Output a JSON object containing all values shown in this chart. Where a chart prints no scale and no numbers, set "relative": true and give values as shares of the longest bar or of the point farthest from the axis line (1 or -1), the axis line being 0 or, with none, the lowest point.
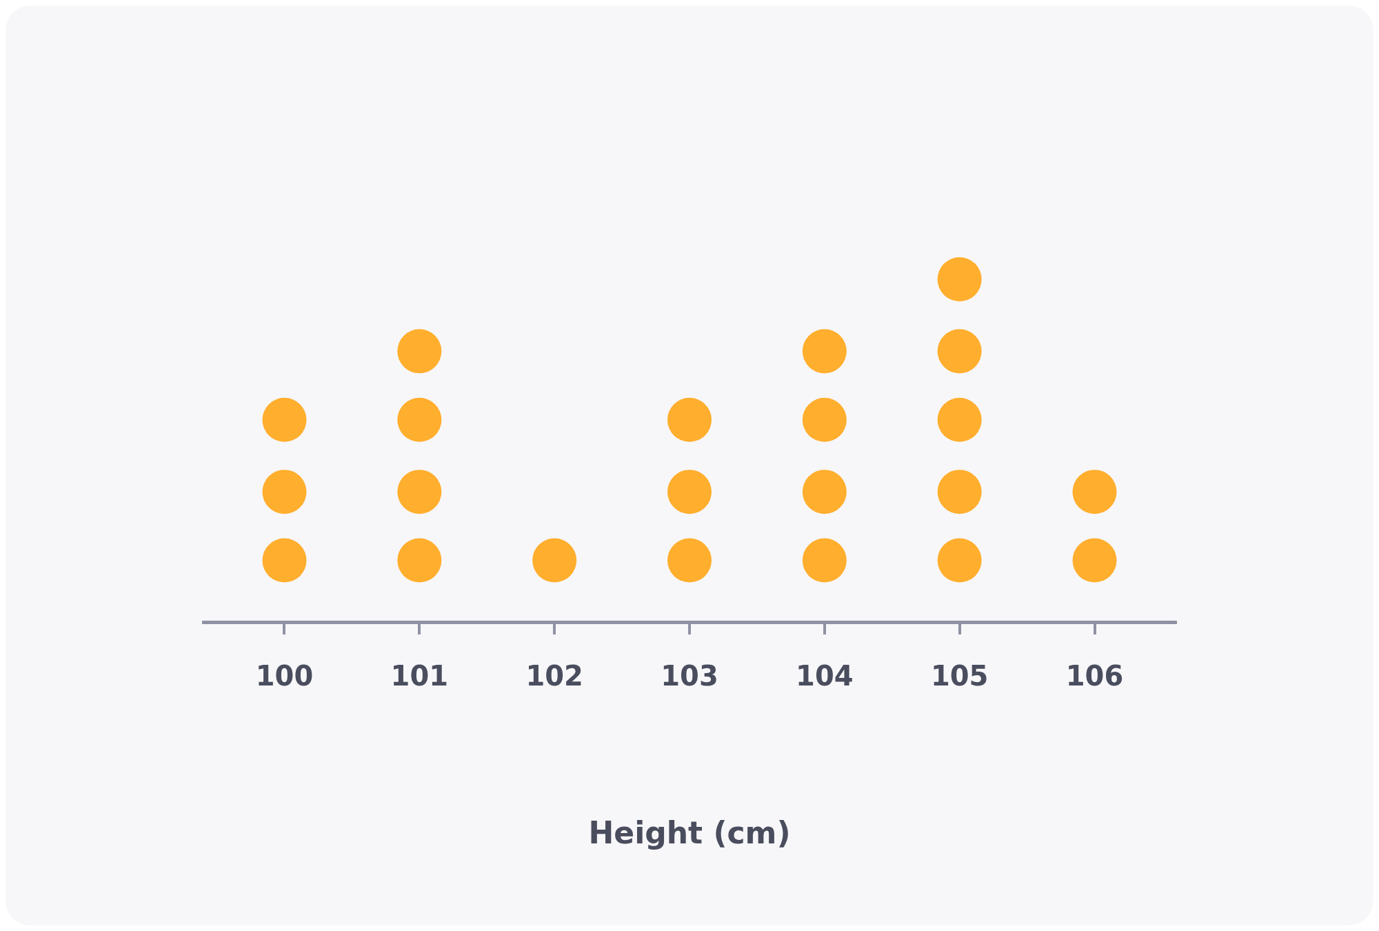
{
  "chart_data": {
    "type": "scatter",
    "xlabel": "Height (cm)",
    "x": [
      100,
      100,
      100,
      101,
      101,
      101,
      101,
      102,
      103,
      103,
      103,
      104,
      104,
      104,
      104,
      105,
      105,
      105,
      105,
      105,
      106,
      106
    ],
    "values": [
      0.18,
      0.38,
      0.59,
      0.18,
      0.38,
      0.59,
      0.79,
      0.18,
      0.18,
      0.38,
      0.59,
      0.18,
      0.38,
      0.59,
      0.79,
      0.18,
      0.38,
      0.59,
      0.79,
      1,
      0.18,
      0.38
    ],
    "relative": true,
    "color": "#ffae2d",
    "marker": "circle",
    "xlim": [
      99.4,
      106.6
    ],
    "xticks": [
      100,
      101,
      102,
      103,
      104,
      105,
      106
    ],
    "tick_labels": "x"
  }
}
